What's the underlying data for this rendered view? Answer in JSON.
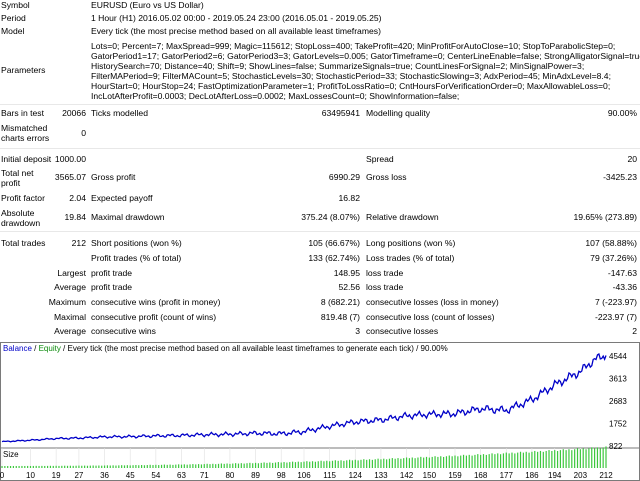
{
  "report": {
    "symbol": {
      "label": "Symbol",
      "value": "EURUSD (Euro vs US Dollar)"
    },
    "period": {
      "label": "Period",
      "value": "1 Hour (H1) 2016.05.02 00:00 - 2019.05.24 23:00 (2016.05.01 - 2019.05.25)"
    },
    "model": {
      "label": "Model",
      "value": "Every tick (the most precise method based on all available least timeframes)"
    },
    "parameters": {
      "label": "Parameters",
      "lines": [
        "Lots=0; Percent=7; MaxSpread=999; Magic=115612; StopLoss=400; TakeProfit=420; MinProfitForAutoClose=10; StopToParabolicStep=0;",
        "GatorPeriod1=17; GatorPeriod2=6; GatorPeriod3=3; GatorLevels=0.005; GatorTimeframe=0; CenterLineEnable=false; StrongAlligatorSignal=true;",
        "HistorySearch=70; Distance=40; Shift=9; ShowLines=false; SummarizeSignals=true; CountLinesForSignal=2; MinSignalPower=3;",
        "FilterMAPeriod=9; FilterMACount=5; StochasticLevels=30; StochasticPeriod=33; StochasticSlowing=3; AdxPeriod=45; MinAdxLevel=8.4;",
        "HourStart=0; HourStop=24; FastOptimizationParameter=1; ProfitToLossRatio=0; CntHoursForVerificationOrder=0; MaxAllowableLoss=0;",
        "IncLotAfterProfit=0.0003; DecLotAfterLoss=0.0002; MaxLossesCount=0; ShowInformation=false;"
      ]
    },
    "bars_in_test": {
      "label": "Bars in test",
      "value": "20066"
    },
    "ticks_modelled": {
      "label": "Ticks modelled",
      "value": "63495941"
    },
    "modelling_quality": {
      "label": "Modelling quality",
      "value": "90.00%"
    },
    "mismatched": {
      "label1": "Mismatched",
      "label2": "charts errors",
      "value": "0"
    },
    "initial_deposit": {
      "label": "Initial deposit",
      "value": "1000.00"
    },
    "spread": {
      "label": "Spread",
      "value": "20"
    },
    "total_net_profit": {
      "label1": "Total net",
      "label2": "profit",
      "value": "3565.07"
    },
    "gross_profit": {
      "label": "Gross profit",
      "value": "6990.29"
    },
    "gross_loss": {
      "label": "Gross loss",
      "value": "-3425.23"
    },
    "profit_factor": {
      "label": "Profit factor",
      "value": "2.04"
    },
    "expected_payoff": {
      "label": "Expected payoff",
      "value": "16.82"
    },
    "absolute_drawdown": {
      "label1": "Absolute",
      "label2": "drawdown",
      "value": "19.84"
    },
    "maximal_drawdown": {
      "label": "Maximal drawdown",
      "value": "375.24 (8.07%)"
    },
    "relative_drawdown": {
      "label": "Relative drawdown",
      "value": "19.65% (273.89)"
    },
    "total_trades": {
      "label": "Total trades",
      "value": "212"
    },
    "short_positions": {
      "label": "Short positions (won %)",
      "value": "105 (66.67%)"
    },
    "long_positions": {
      "label": "Long positions (won %)",
      "value": "107 (58.88%)"
    },
    "profit_trades": {
      "label": "Profit trades (% of total)",
      "value": "133 (62.74%)"
    },
    "loss_trades": {
      "label": "Loss trades (% of total)",
      "value": "79 (37.26%)"
    },
    "largest": {
      "prefix": "Largest",
      "profit_label": "profit trade",
      "profit_value": "148.95",
      "loss_label": "loss trade",
      "loss_value": "-147.63"
    },
    "average": {
      "prefix": "Average",
      "profit_label": "profit trade",
      "profit_value": "52.56",
      "loss_label": "loss trade",
      "loss_value": "-43.36"
    },
    "maximum": {
      "prefix": "Maximum",
      "wins_label": "consecutive wins (profit in money)",
      "wins_value": "8 (682.21)",
      "losses_label": "consecutive losses (loss in money)",
      "losses_value": "7 (-223.97)"
    },
    "maximal": {
      "prefix": "Maximal",
      "profit_label": "consecutive profit (count of wins)",
      "profit_value": "819.48 (7)",
      "loss_label": "consecutive loss (count of losses)",
      "loss_value": "-223.97 (7)"
    },
    "average_consec": {
      "prefix": "Average",
      "wins_label": "consecutive wins",
      "wins_value": "3",
      "losses_label": "consecutive losses",
      "losses_value": "2"
    }
  },
  "chart": {
    "title_balance": "Balance",
    "title_sep": " / ",
    "title_equity": "Equity",
    "title_rest": " / Every tick (the most precise method based on all available least timeframes to generate each tick) / 90.00%",
    "size_label": "Size",
    "balance_color": "#0000c8",
    "size_bar_color": "#3cc83c"
  },
  "chart_data": {
    "type": "line",
    "title": "Balance / Equity / Every tick (the most precise method based on all available least timeframes to generate each tick) / 90.00%",
    "yticks": [
      "4544",
      "3613",
      "2683",
      "1752",
      "822"
    ],
    "y_tick_values": [
      4544,
      3613,
      2683,
      1752,
      822
    ],
    "xticks": [
      "0",
      "10",
      "19",
      "27",
      "36",
      "45",
      "54",
      "63",
      "71",
      "80",
      "89",
      "98",
      "106",
      "115",
      "124",
      "133",
      "142",
      "150",
      "159",
      "168",
      "177",
      "186",
      "194",
      "203",
      "212"
    ],
    "series": [
      {
        "name": "Balance",
        "x": [
          0,
          10,
          19,
          27,
          36,
          45,
          54,
          63,
          71,
          80,
          89,
          98,
          106,
          115,
          124,
          133,
          142,
          150,
          159,
          168,
          177,
          186,
          194,
          203,
          208,
          212
        ],
        "y": [
          1000,
          1060,
          1130,
          1150,
          1200,
          1210,
          1240,
          1260,
          1290,
          1310,
          1350,
          1330,
          1420,
          1640,
          1820,
          1900,
          2070,
          2130,
          2160,
          2360,
          2300,
          2740,
          3350,
          3900,
          4400,
          4565
        ]
      }
    ],
    "size_series": {
      "name": "Size",
      "x_range": [
        0,
        212
      ],
      "trend": "increasing"
    }
  }
}
